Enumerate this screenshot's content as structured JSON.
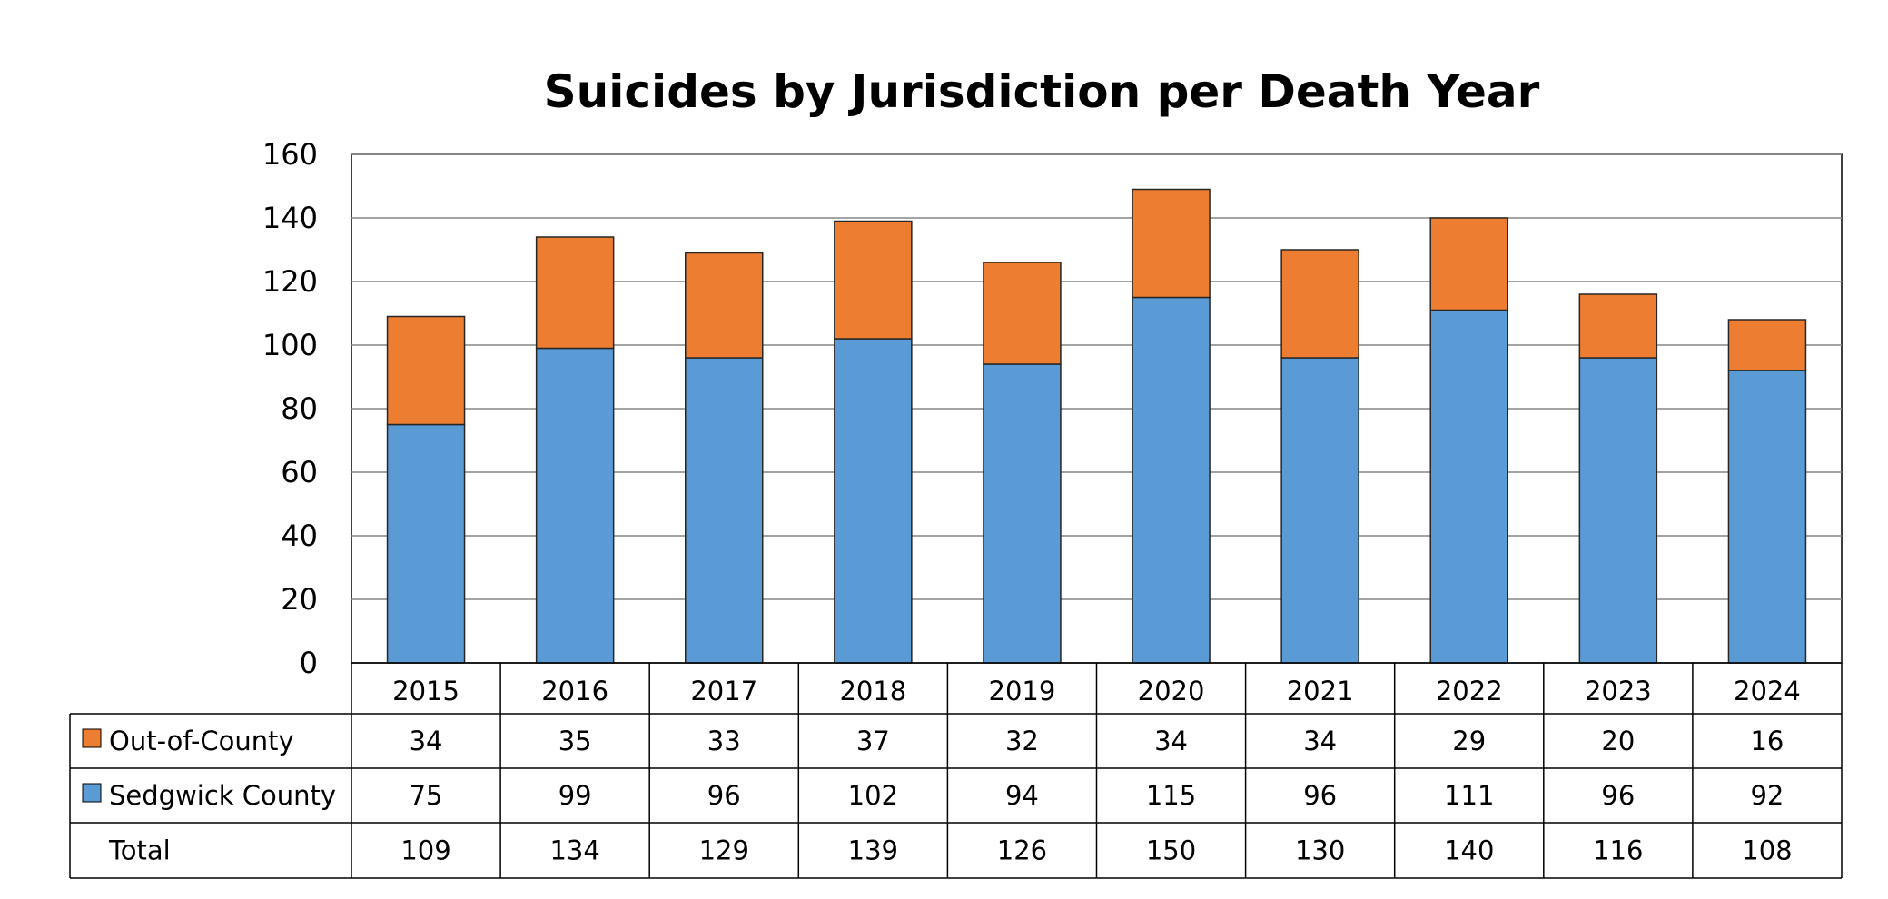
{
  "chart_data": {
    "type": "bar",
    "stacked": true,
    "title": "Suicides by Jurisdiction per Death Year",
    "xlabel": "",
    "ylabel": "",
    "categories": [
      "2015",
      "2016",
      "2017",
      "2018",
      "2019",
      "2020",
      "2021",
      "2022",
      "2023",
      "2024"
    ],
    "series": [
      {
        "name": "Sedgwick County",
        "color": "#5B9BD5",
        "values": [
          75,
          99,
          96,
          102,
          94,
          115,
          96,
          111,
          96,
          92
        ]
      },
      {
        "name": "Out-of-County",
        "color": "#ED7D31",
        "values": [
          34,
          35,
          33,
          37,
          32,
          34,
          34,
          29,
          20,
          16
        ]
      }
    ],
    "table_rows": [
      {
        "label": "Out-of-County",
        "series": 1,
        "values": [
          "34",
          "35",
          "33",
          "37",
          "32",
          "34",
          "34",
          "29",
          "20",
          "16"
        ]
      },
      {
        "label": "Sedgwick County",
        "series": 0,
        "values": [
          "75",
          "99",
          "96",
          "102",
          "94",
          "115",
          "96",
          "111",
          "96",
          "92"
        ]
      },
      {
        "label": "Total",
        "series": null,
        "values": [
          "109",
          "134",
          "129",
          "139",
          "126",
          "150",
          "130",
          "140",
          "116",
          "108"
        ]
      }
    ],
    "yticks": [
      "0",
      "20",
      "40",
      "60",
      "80",
      "100",
      "120",
      "140",
      "160"
    ],
    "ylim": [
      0,
      160
    ],
    "grid": true,
    "legend": "data-table"
  }
}
